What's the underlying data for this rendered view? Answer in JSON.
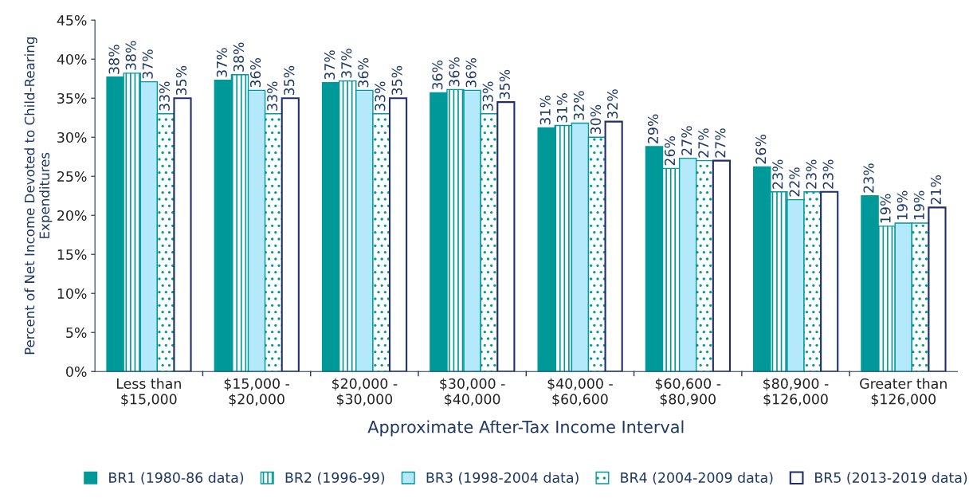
{
  "chart_data": {
    "type": "bar",
    "xlabel": "Approximate After-Tax Income Interval",
    "ylabel": "Percent of Net Income Devoted to Child-Rearing Expenditures",
    "categories": [
      "Less than\n$15,000",
      "$15,000 -\n$20,000",
      "$20,000 -\n$30,000",
      "$30,000 -\n$40,000",
      "$40,000 -\n$60,600",
      "$60,600 -\n$80,900",
      "$80,900 -\n$126,000",
      "Greater than\n$126,000"
    ],
    "series": [
      {
        "name": "BR1 (1980-86 data)",
        "color": "#009999",
        "values": [
          37.7,
          37.3,
          37.0,
          35.7,
          31.2,
          28.8,
          26.2,
          22.5
        ],
        "value_labels": [
          "38%",
          "37%",
          "37%",
          "36%",
          "31%",
          "29%",
          "26%",
          "23%"
        ]
      },
      {
        "name": "BR2 (1996-99)",
        "color": "#009999",
        "values": [
          38.2,
          38.0,
          37.2,
          36.1,
          31.5,
          26.0,
          23.0,
          18.6
        ],
        "value_labels": [
          "38%",
          "38%",
          "37%",
          "36%",
          "31%",
          "26%",
          "23%",
          "19%"
        ]
      },
      {
        "name": "BR3 (1998-2004 data)",
        "color": "#b3e9fb",
        "values": [
          37.1,
          36.0,
          36.0,
          36.0,
          31.8,
          27.3,
          22.0,
          19.0
        ],
        "value_labels": [
          "37%",
          "36%",
          "36%",
          "36%",
          "32%",
          "27%",
          "22%",
          "19%"
        ]
      },
      {
        "name": "BR4 (2004-2009 data)",
        "color": "#009999",
        "values": [
          33.0,
          33.0,
          33.0,
          33.0,
          30.0,
          27.0,
          23.0,
          19.0
        ],
        "value_labels": [
          "33%",
          "33%",
          "33%",
          "33%",
          "30%",
          "27%",
          "23%",
          "19%"
        ]
      },
      {
        "name": "BR5 (2013-2019 data)",
        "color": "#1f2d6b",
        "values": [
          35.0,
          35.0,
          35.0,
          34.5,
          32.0,
          27.0,
          23.0,
          21.0
        ],
        "value_labels": [
          "35%",
          "35%",
          "35%",
          "35%",
          "32%",
          "27%",
          "23%",
          "21%"
        ]
      }
    ],
    "ylim": [
      0,
      45
    ],
    "yticks": [
      {
        "value": 0,
        "label": "0%"
      },
      {
        "value": 5,
        "label": "5%"
      },
      {
        "value": 10,
        "label": "10%"
      },
      {
        "value": 15,
        "label": "15%"
      },
      {
        "value": 20,
        "label": "20%"
      },
      {
        "value": 25,
        "label": "25%"
      },
      {
        "value": 30,
        "label": "30%"
      },
      {
        "value": 35,
        "label": "35%"
      },
      {
        "value": 40,
        "label": "40%"
      },
      {
        "value": 45,
        "label": "45%"
      }
    ],
    "legend": "bottom"
  }
}
